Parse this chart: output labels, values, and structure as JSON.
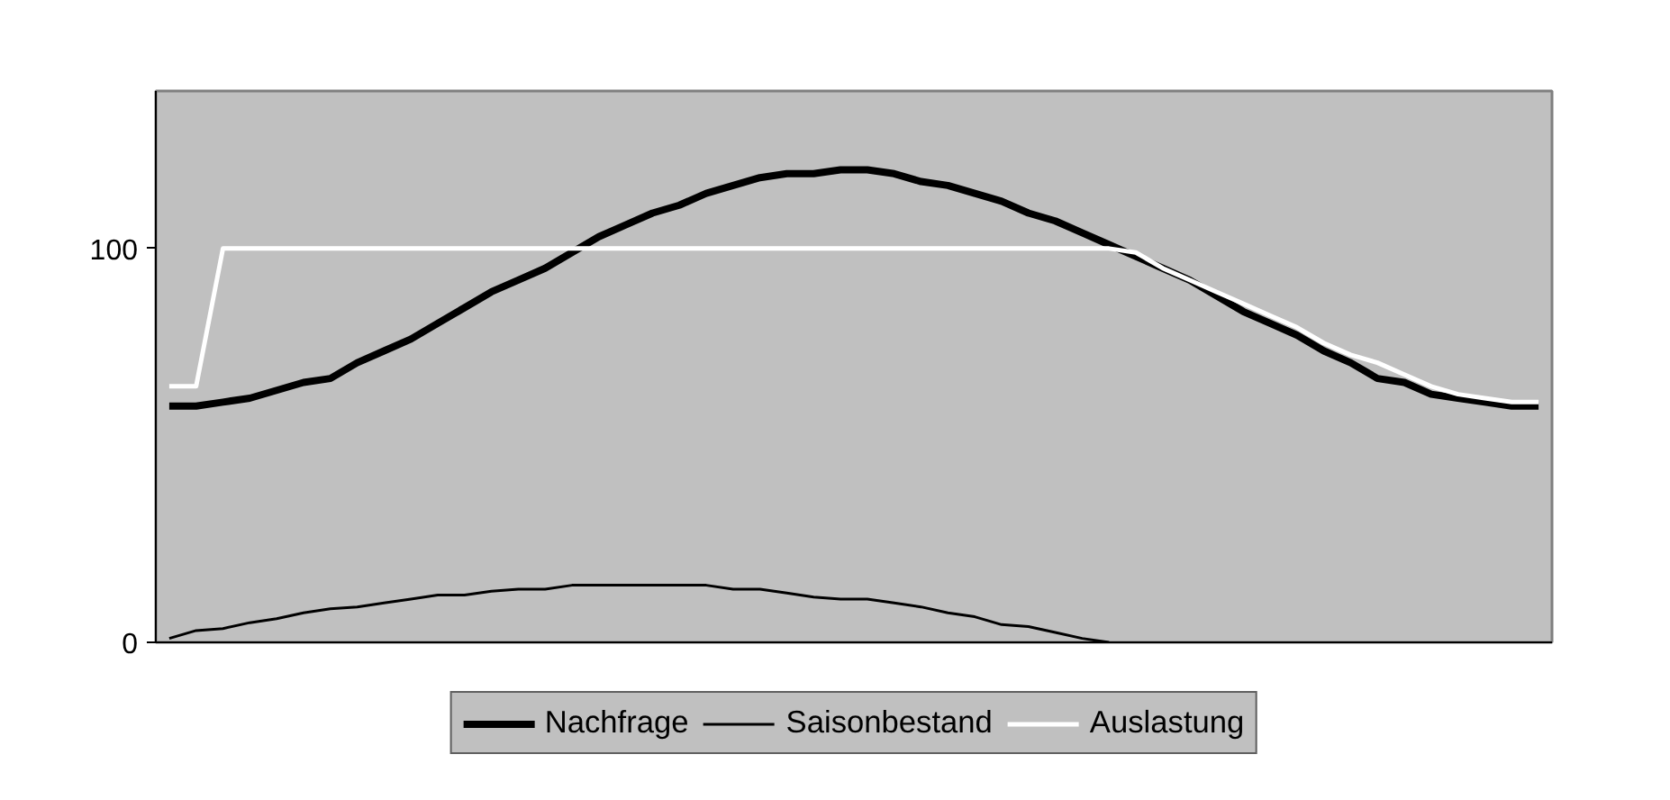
{
  "chart_data": {
    "type": "line",
    "categories": [
      null,
      null,
      null,
      null,
      null,
      null,
      null,
      null,
      null,
      null,
      null,
      null,
      null,
      null,
      null,
      null,
      null,
      null,
      null,
      null,
      null,
      null,
      null,
      null,
      null,
      null,
      null,
      null,
      null,
      null,
      null,
      null,
      null,
      null,
      null,
      null,
      null,
      null,
      null,
      null,
      null,
      null,
      null,
      null,
      null,
      null,
      null,
      null,
      null,
      null,
      null,
      null
    ],
    "series": [
      {
        "name": "Nachfrage",
        "color": "#000000",
        "values": [
          60,
          60,
          61,
          62,
          64,
          66,
          67,
          71,
          74,
          77,
          81,
          85,
          89,
          92,
          95,
          99,
          103,
          106,
          109,
          111,
          114,
          116,
          118,
          119,
          119,
          120,
          120,
          119,
          117,
          116,
          114,
          112,
          109,
          107,
          104,
          101,
          98,
          95,
          92,
          88,
          84,
          81,
          78,
          74,
          71,
          67,
          66,
          63,
          62,
          61,
          60,
          60
        ]
      },
      {
        "name": "Saisonbestand",
        "color": "#000000",
        "values": [
          1,
          3,
          3.5,
          5,
          6,
          7.5,
          8.5,
          9,
          10,
          11,
          12,
          12,
          13,
          13.5,
          13.5,
          14.5,
          14.5,
          14.5,
          14.5,
          14.5,
          14.5,
          13.5,
          13.5,
          12.5,
          11.5,
          11,
          11,
          10,
          9,
          7.5,
          6.5,
          4.5,
          4,
          2.5,
          1,
          0,
          null,
          null,
          null,
          null,
          null,
          null,
          null,
          null,
          null,
          null,
          null,
          null,
          null,
          null,
          null,
          null
        ]
      },
      {
        "name": "Auslastung",
        "color": "#ffffff",
        "values": [
          65,
          65,
          100,
          100,
          100,
          100,
          100,
          100,
          100,
          100,
          100,
          100,
          100,
          100,
          100,
          100,
          100,
          100,
          100,
          100,
          100,
          100,
          100,
          100,
          100,
          100,
          100,
          100,
          100,
          100,
          100,
          100,
          100,
          100,
          100,
          100,
          99,
          95,
          92,
          89,
          86,
          83,
          80,
          76,
          73,
          71,
          68,
          65,
          63,
          62,
          61,
          61
        ]
      }
    ],
    "ylim": [
      0,
      140
    ],
    "yticks": [
      0,
      100
    ],
    "grid": false,
    "legend": "bottom",
    "tick_labels": "y",
    "line_style": "solid",
    "marker": "none"
  }
}
